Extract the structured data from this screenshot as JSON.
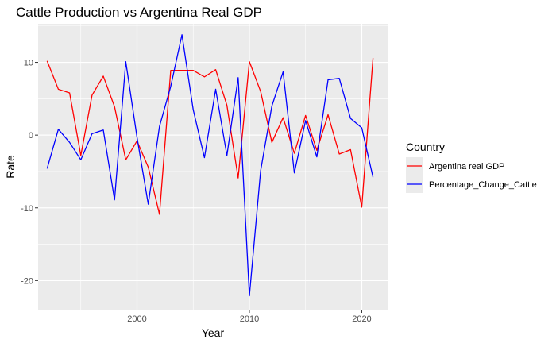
{
  "chart_data": {
    "type": "line",
    "title": "Cattle Production vs Argentina Real GDP",
    "xlabel": "Year",
    "ylabel": "Rate",
    "xlim": [
      1991.2,
      2022.3
    ],
    "ylim": [
      -24,
      15.3
    ],
    "x_ticks": [
      2000,
      2010,
      2020
    ],
    "x_tick_labels": [
      "2000",
      "2010",
      "2020"
    ],
    "y_ticks": [
      -20,
      -10,
      0,
      10
    ],
    "y_tick_labels": [
      "-20",
      "-10",
      "0",
      "10"
    ],
    "grid": true,
    "legend": {
      "title": "Country",
      "position": "right"
    },
    "x": [
      1992,
      1993,
      1994,
      1995,
      1996,
      1997,
      1998,
      1999,
      2000,
      2001,
      2002,
      2003,
      2004,
      2005,
      2006,
      2007,
      2008,
      2009,
      2010,
      2011,
      2012,
      2013,
      2014,
      2015,
      2016,
      2017,
      2018,
      2019,
      2020,
      2021
    ],
    "series": [
      {
        "name": "Argentina real GDP",
        "color": "#ff0000",
        "values": [
          10.2,
          6.3,
          5.8,
          -2.8,
          5.5,
          8.1,
          3.9,
          -3.4,
          -0.8,
          -4.4,
          -10.9,
          8.9,
          8.9,
          8.9,
          8.0,
          9.0,
          4.1,
          -5.9,
          10.1,
          6.0,
          -1.0,
          2.4,
          -2.5,
          2.7,
          -2.1,
          2.8,
          -2.6,
          -2.0,
          -9.9,
          10.6
        ]
      },
      {
        "name": "Percentage_Change_Cattle",
        "color": "#0000ff",
        "values": [
          -4.6,
          0.8,
          -1.0,
          -3.4,
          0.2,
          0.7,
          -8.9,
          10.1,
          -0.3,
          -9.5,
          1.2,
          6.7,
          13.8,
          3.5,
          -3.1,
          6.3,
          -2.8,
          7.9,
          -22.1,
          -4.9,
          4.0,
          8.7,
          -5.2,
          2.0,
          -3.0,
          7.6,
          7.8,
          2.3,
          1.0,
          -5.8
        ]
      }
    ]
  }
}
